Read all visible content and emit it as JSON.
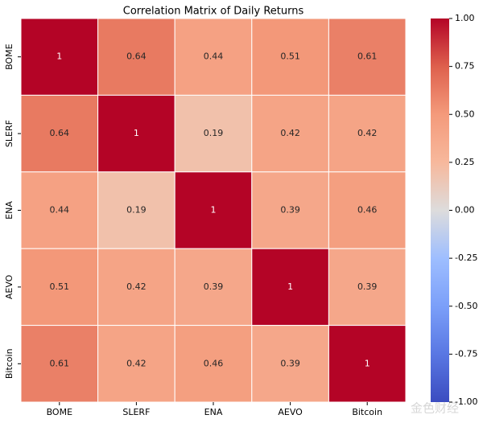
{
  "chart_data": {
    "type": "heatmap",
    "title": "Correlation Matrix of Daily Returns",
    "x": [
      "BOME",
      "SLERF",
      "ENA",
      "AEVO",
      "Bitcoin"
    ],
    "y": [
      "BOME",
      "SLERF",
      "ENA",
      "AEVO",
      "Bitcoin"
    ],
    "z": [
      [
        1,
        0.64,
        0.44,
        0.51,
        0.61
      ],
      [
        0.64,
        1,
        0.19,
        0.42,
        0.42
      ],
      [
        0.44,
        0.19,
        1,
        0.39,
        0.46
      ],
      [
        0.51,
        0.42,
        0.39,
        1,
        0.39
      ],
      [
        0.61,
        0.42,
        0.46,
        0.39,
        1
      ]
    ],
    "colormap": "coolwarm",
    "zlim": [
      -1,
      1
    ],
    "zticks": [
      {
        "value": 1,
        "label": "1.00"
      },
      {
        "value": 0.75,
        "label": "0.75"
      },
      {
        "value": 0.5,
        "label": "0.50"
      },
      {
        "value": 0.25,
        "label": "0.25"
      },
      {
        "value": 0,
        "label": "0.00"
      },
      {
        "value": -0.25,
        "label": "-0.25"
      },
      {
        "value": -0.5,
        "label": "-0.50"
      },
      {
        "value": -0.75,
        "label": "-0.75"
      },
      {
        "value": -1,
        "label": "-1.00"
      }
    ],
    "watermark": "金色财经"
  }
}
